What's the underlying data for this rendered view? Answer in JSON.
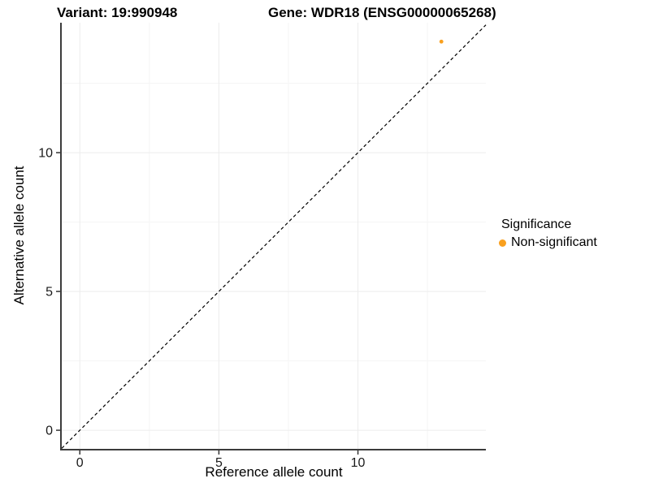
{
  "chart_data": {
    "type": "scatter",
    "title_left": "Variant: 19:990948",
    "title_right": "Gene: WDR18 (ENSG00000065268)",
    "xlabel": "Reference allele count",
    "ylabel": "Alternative allele count",
    "xlim": [
      -0.65,
      14.6
    ],
    "ylim": [
      -0.67,
      14.68
    ],
    "x_ticks": [
      0,
      5,
      10
    ],
    "y_ticks": [
      0,
      5,
      10
    ],
    "x_minor_ticks": [
      2.5,
      7.5,
      12.5
    ],
    "y_minor_ticks": [
      2.5,
      7.5,
      12.5
    ],
    "grid": "major and minor gridlines, white panel background",
    "reference_line": {
      "kind": "identity y=x",
      "style": "dashed",
      "color": "#000000"
    },
    "series": [
      {
        "name": "Non-significant",
        "color": "#F9A01E",
        "point_radius_px": 2.4,
        "points": [
          {
            "x": 13,
            "y": 14
          }
        ]
      }
    ],
    "legend": {
      "title": "Significance",
      "position": "right",
      "entries": [
        {
          "label": "Non-significant",
          "color": "#F9A01E"
        }
      ]
    },
    "colors": {
      "axis_line": "#3C3C3C",
      "tick_mark": "#333333",
      "tick_label": "#1A1A1A",
      "grid_major": "#ECECEC",
      "grid_minor": "#F5F5F5",
      "background": "#FFFFFF"
    }
  }
}
